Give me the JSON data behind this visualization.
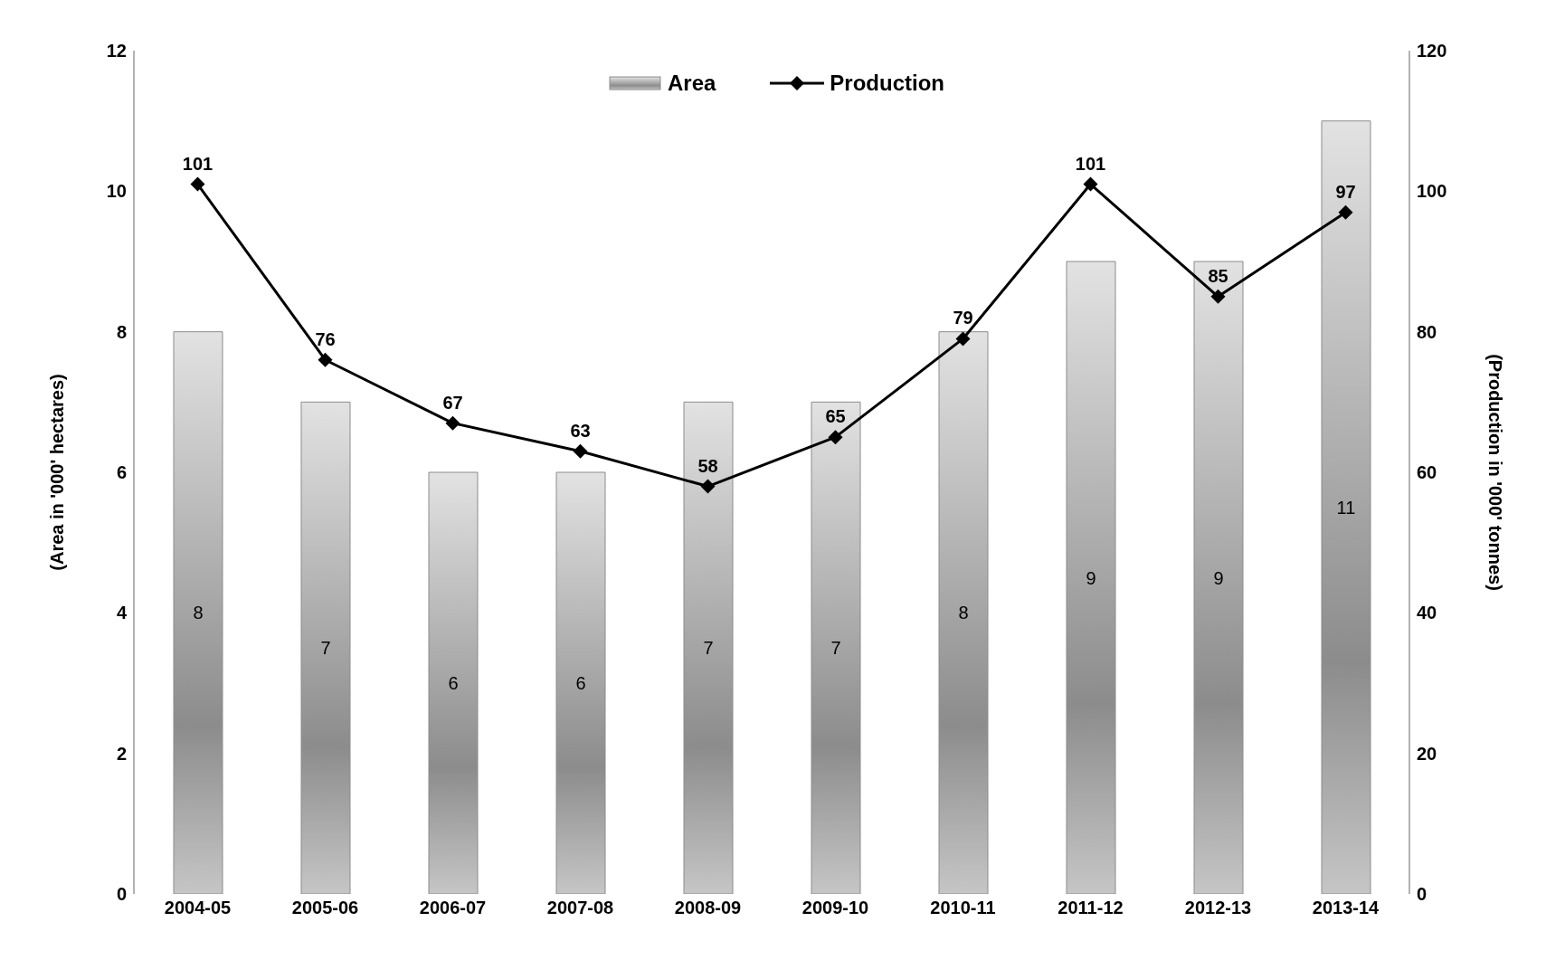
{
  "chart_data": {
    "type": "bar",
    "categories": [
      "2004-05",
      "2005-06",
      "2006-07",
      "2007-08",
      "2008-09",
      "2009-10",
      "2010-11",
      "2011-12",
      "2012-13",
      "2013-14"
    ],
    "series": [
      {
        "name": "Area",
        "color": "#8c8c8c",
        "values": [
          8,
          7,
          6,
          6,
          7,
          7,
          8,
          9,
          9,
          11
        ]
      },
      {
        "name": "Production",
        "type": "line",
        "axis": "y2",
        "color": "#000000",
        "values": [
          101,
          76,
          67,
          63,
          58,
          65,
          79,
          101,
          85,
          97
        ]
      }
    ],
    "ylabel": "(Area in '000' hectares)",
    "y2label": "(Production in '000' tonnes)",
    "ylim": [
      0,
      12
    ],
    "yticks": [
      0,
      2,
      4,
      6,
      8,
      10,
      12
    ],
    "y2lim": [
      0,
      120
    ],
    "y2ticks": [
      0,
      20,
      40,
      60,
      80,
      100,
      120
    ],
    "data_labels": true,
    "legend": "top",
    "marker": "diamond",
    "line_style": "solid",
    "grid": false
  }
}
